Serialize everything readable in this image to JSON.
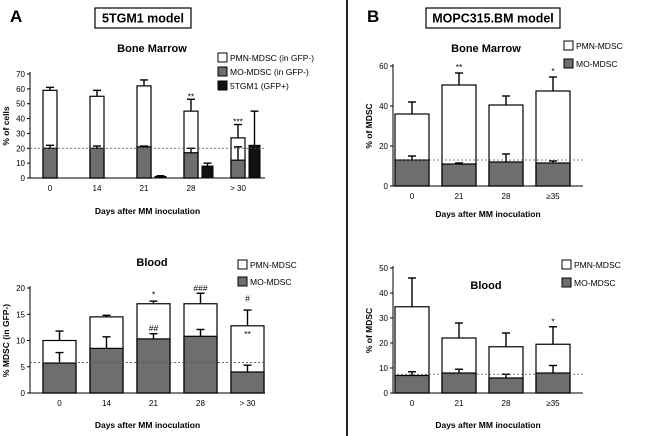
{
  "panels": {
    "A": {
      "letter": "A",
      "model_label": "5TGM1 model"
    },
    "B": {
      "letter": "B",
      "model_label": "MOPC315.BM model"
    }
  },
  "colors": {
    "white_bar": "#ffffff",
    "grey_bar": "#6e6e6e",
    "black_bar": "#111111",
    "divider": "#222222"
  },
  "chart_data": [
    {
      "id": "a-bm",
      "type": "bar",
      "title": "Bone Marrow",
      "ylabel": "% of cells",
      "xlabel": "Days after MM inoculation",
      "categories": [
        "0",
        "14",
        "21",
        "28",
        "> 30"
      ],
      "ylim": [
        0,
        70
      ],
      "yticks": [
        0,
        10,
        20,
        30,
        40,
        50,
        60,
        70
      ],
      "reference_line": 20,
      "series": [
        {
          "name": "PMN-MDSC (in GFP-)",
          "color": "#ffffff",
          "kind": "stack-top",
          "totals": [
            59,
            55,
            62,
            45,
            27
          ],
          "errors": [
            2,
            4,
            4,
            8,
            9
          ]
        },
        {
          "name": "MO-MDSC (in GFP-)",
          "color": "#6e6e6e",
          "kind": "stack-base",
          "values": [
            20,
            20,
            21,
            17,
            12
          ],
          "errors": [
            2,
            1.5,
            0.5,
            3,
            9
          ]
        },
        {
          "name": "5TGM1 (GFP+)",
          "color": "#111111",
          "kind": "side",
          "values": [
            null,
            null,
            1,
            8,
            22
          ],
          "errors": [
            null,
            null,
            0.5,
            2,
            23
          ]
        }
      ],
      "annotations": [
        {
          "category": "28",
          "text": "**",
          "y": 53
        },
        {
          "category": "> 30",
          "text": "***",
          "y": 36
        }
      ]
    },
    {
      "id": "a-blood",
      "type": "bar",
      "title": "Blood",
      "ylabel": "% MDSC (in GFP-)",
      "xlabel": "Days after MM inoculation",
      "categories": [
        "0",
        "14",
        "21",
        "28",
        "> 30"
      ],
      "ylim": [
        0,
        20
      ],
      "yticks": [
        0,
        5,
        10,
        15,
        20
      ],
      "reference_line": 5.8,
      "series": [
        {
          "name": "PMN-MDSC",
          "color": "#ffffff",
          "kind": "stack-top",
          "totals": [
            10,
            14.5,
            17,
            17,
            12.8
          ],
          "errors": [
            1.8,
            0.3,
            0.5,
            2,
            3
          ]
        },
        {
          "name": "MO-MDSC",
          "color": "#6e6e6e",
          "kind": "stack-base",
          "values": [
            5.7,
            8.5,
            10.3,
            10.8,
            4
          ],
          "errors": [
            2,
            2.2,
            1,
            1.3,
            1.3
          ]
        }
      ],
      "annotations": [
        {
          "category": "21",
          "text": "##",
          "y": 11.8
        },
        {
          "category": "21",
          "text": "*",
          "y": 18.2
        },
        {
          "category": "28",
          "text": "###",
          "y": 19.4
        },
        {
          "category": "> 30",
          "text": "#",
          "y": 17.4
        },
        {
          "category": "> 30",
          "text": "**",
          "y": 10.7
        }
      ]
    },
    {
      "id": "b-bm",
      "type": "bar",
      "title": "Bone Marrow",
      "ylabel": "% of MDSC",
      "xlabel": "Days after MM inoculation",
      "categories": [
        "0",
        "21",
        "28",
        "≥35"
      ],
      "ylim": [
        0,
        60
      ],
      "yticks": [
        0,
        20,
        40,
        60
      ],
      "reference_line": 13,
      "series": [
        {
          "name": "PMN-MDSC",
          "color": "#ffffff",
          "kind": "stack-top",
          "totals": [
            36,
            50.5,
            40.5,
            47.5
          ],
          "errors": [
            6,
            6,
            4.5,
            7
          ]
        },
        {
          "name": "MO-MDSC",
          "color": "#6e6e6e",
          "kind": "stack-base",
          "values": [
            13,
            11,
            12,
            11.5
          ],
          "errors": [
            2,
            0.5,
            4,
            1
          ]
        }
      ],
      "annotations": [
        {
          "category": "21",
          "text": "**",
          "y": 58
        },
        {
          "category": "≥35",
          "text": "*",
          "y": 56
        }
      ]
    },
    {
      "id": "b-blood",
      "type": "bar",
      "title": "Blood",
      "ylabel": "% of MDSC",
      "xlabel": "Days after MM inoculation",
      "categories": [
        "0",
        "21",
        "28",
        "≥35"
      ],
      "ylim": [
        0,
        50
      ],
      "yticks": [
        0,
        10,
        20,
        30,
        40,
        50
      ],
      "reference_line": 7.5,
      "series": [
        {
          "name": "PMN-MDSC",
          "color": "#ffffff",
          "kind": "stack-top",
          "totals": [
            34.5,
            22,
            18.5,
            19.5
          ],
          "errors": [
            11.5,
            6,
            5.5,
            7
          ]
        },
        {
          "name": "MO-MDSC",
          "color": "#6e6e6e",
          "kind": "stack-base",
          "values": [
            7,
            8,
            6,
            8
          ],
          "errors": [
            1.5,
            1.5,
            1.5,
            3
          ]
        }
      ],
      "annotations": [
        {
          "category": "≥35",
          "text": "*",
          "y": 27.5
        }
      ]
    }
  ]
}
